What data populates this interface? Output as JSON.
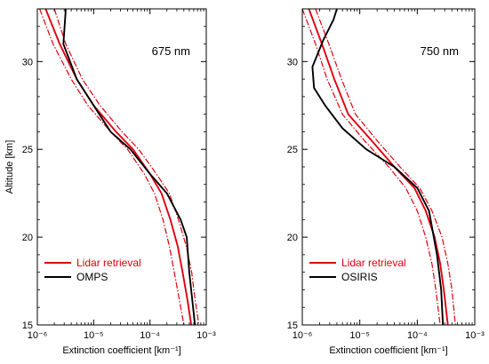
{
  "chart_data": [
    {
      "type": "line",
      "annotation": "675 nm",
      "xlabel": "Extinction coefficient [km⁻¹]",
      "ylabel": "Altitude [km]",
      "xscale": "log",
      "xlim": [
        1e-06,
        0.001
      ],
      "ylim": [
        15,
        33
      ],
      "xticks": [
        "10⁻⁶",
        "10⁻⁵",
        "10⁻⁴",
        "10⁻³"
      ],
      "yticks": [
        15,
        20,
        25,
        30
      ],
      "legend_position": "bottom-left",
      "colors": {
        "lidar": "#e0000f",
        "instrument": "#000000"
      },
      "series": [
        {
          "name": "Lidar retrieval",
          "style": "solid",
          "color": "#e0000f",
          "points": [
            [
              1.4e-06,
              33
            ],
            [
              2.5e-06,
              31
            ],
            [
              5e-06,
              29
            ],
            [
              1e-05,
              27.5
            ],
            [
              2.5e-05,
              26
            ],
            [
              5e-05,
              25
            ],
            [
              0.0001,
              23.6
            ],
            [
              0.00016,
              22.5
            ],
            [
              0.00023,
              21
            ],
            [
              0.00031,
              19.5
            ],
            [
              0.00038,
              18
            ],
            [
              0.00046,
              16.5
            ],
            [
              0.00054,
              15
            ]
          ]
        },
        {
          "name": "",
          "style": "dashdot",
          "color": "#e0000f",
          "points": [
            [
              1.1e-06,
              33
            ],
            [
              1.9e-06,
              31
            ],
            [
              4e-06,
              29
            ],
            [
              7.9e-06,
              27.5
            ],
            [
              2e-05,
              26
            ],
            [
              4e-05,
              25
            ],
            [
              7.9e-05,
              23.6
            ],
            [
              0.00012,
              22.5
            ],
            [
              0.00017,
              21
            ],
            [
              0.00022,
              19.5
            ],
            [
              0.00027,
              18
            ],
            [
              0.00033,
              16.5
            ],
            [
              0.0004,
              15
            ]
          ]
        },
        {
          "name": "",
          "style": "dashdot",
          "color": "#e0000f",
          "points": [
            [
              2e-06,
              33
            ],
            [
              3.2e-06,
              31
            ],
            [
              6.3e-06,
              29
            ],
            [
              1.3e-05,
              27.5
            ],
            [
              3.2e-05,
              26
            ],
            [
              6.3e-05,
              25
            ],
            [
              0.00013,
              23.6
            ],
            [
              0.00022,
              22.5
            ],
            [
              0.00032,
              21
            ],
            [
              0.00044,
              19.5
            ],
            [
              0.00055,
              18
            ],
            [
              0.00063,
              16.5
            ],
            [
              0.00074,
              15
            ]
          ]
        },
        {
          "name": "OMPS",
          "style": "solid",
          "color": "#000000",
          "points": [
            [
              3.2e-06,
              33
            ],
            [
              2.9e-06,
              31
            ],
            [
              5e-06,
              29
            ],
            [
              1e-05,
              27.5
            ],
            [
              2e-05,
              26
            ],
            [
              4.5e-05,
              25
            ],
            [
              0.0001,
              23.6
            ],
            [
              0.0002,
              22.5
            ],
            [
              0.00035,
              21
            ],
            [
              0.00045,
              20
            ],
            [
              0.0005,
              18
            ],
            [
              0.00056,
              16.5
            ],
            [
              0.00063,
              15
            ]
          ]
        }
      ]
    },
    {
      "type": "line",
      "annotation": "750 nm",
      "xlabel": "Extinction coefficient [km⁻¹]",
      "ylabel": "",
      "xscale": "log",
      "xlim": [
        1e-06,
        0.001
      ],
      "ylim": [
        15,
        33
      ],
      "xticks": [
        "10⁻⁶",
        "10⁻⁵",
        "10⁻⁴",
        "10⁻³"
      ],
      "yticks": [
        15,
        20,
        25,
        30
      ],
      "legend_position": "bottom-left",
      "colors": {
        "lidar": "#e0000f",
        "instrument": "#000000"
      },
      "series": [
        {
          "name": "Lidar retrieval",
          "style": "solid",
          "color": "#e0000f",
          "points": [
            [
              1.3e-06,
              33
            ],
            [
              2.2e-06,
              31
            ],
            [
              3.6e-06,
              29
            ],
            [
              6.3e-06,
              27
            ],
            [
              1.6e-05,
              25.5
            ],
            [
              4e-05,
              24
            ],
            [
              8.9e-05,
              22.8
            ],
            [
              0.00014,
              21.5
            ],
            [
              0.0002,
              20
            ],
            [
              0.00025,
              18.5
            ],
            [
              0.00029,
              17
            ],
            [
              0.00034,
              15
            ]
          ]
        },
        {
          "name": "",
          "style": "dashdot",
          "color": "#e0000f",
          "points": [
            [
              1e-06,
              33
            ],
            [
              1.7e-06,
              31
            ],
            [
              2.7e-06,
              29
            ],
            [
              5e-06,
              27
            ],
            [
              1.2e-05,
              25.5
            ],
            [
              3.2e-05,
              24
            ],
            [
              6.3e-05,
              22.8
            ],
            [
              0.0001,
              21.5
            ],
            [
              0.00014,
              20
            ],
            [
              0.00018,
              18.5
            ],
            [
              0.00021,
              17
            ],
            [
              0.00025,
              15
            ]
          ]
        },
        {
          "name": "",
          "style": "dashdot",
          "color": "#e0000f",
          "points": [
            [
              1.7e-06,
              33
            ],
            [
              2.9e-06,
              31
            ],
            [
              4.8e-06,
              29
            ],
            [
              8.4e-06,
              27
            ],
            [
              2e-05,
              25.5
            ],
            [
              5e-05,
              24
            ],
            [
              0.00011,
              22.8
            ],
            [
              0.00018,
              21.5
            ],
            [
              0.00027,
              20
            ],
            [
              0.00034,
              18.5
            ],
            [
              0.0004,
              17
            ],
            [
              0.00046,
              15
            ]
          ]
        },
        {
          "name": "OSIRIS",
          "style": "solid",
          "color": "#000000",
          "points": [
            [
              4e-06,
              33
            ],
            [
              3.5e-06,
              32.4
            ],
            [
              2.3e-06,
              31.2
            ],
            [
              1.5e-06,
              29.7
            ],
            [
              1.6e-06,
              28.5
            ],
            [
              2.5e-06,
              27.5
            ],
            [
              5e-06,
              26.2
            ],
            [
              1.3e-05,
              25
            ],
            [
              4e-05,
              24
            ],
            [
              0.0001,
              22.8
            ],
            [
              0.00016,
              21.5
            ],
            [
              0.00022,
              19
            ],
            [
              0.00026,
              17
            ],
            [
              0.00028,
              15
            ]
          ]
        }
      ]
    }
  ]
}
